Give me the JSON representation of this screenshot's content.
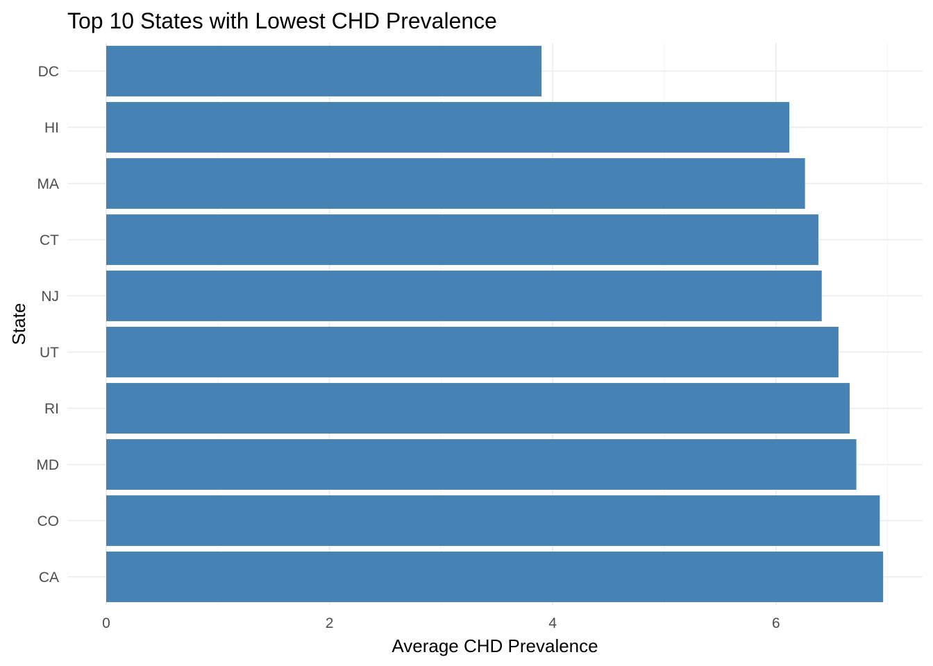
{
  "chart_data": {
    "type": "bar",
    "orientation": "horizontal",
    "title": "Top 10 States with Lowest CHD Prevalence",
    "xlabel": "Average CHD Prevalence",
    "ylabel": "State",
    "categories": [
      "DC",
      "HI",
      "MA",
      "CT",
      "NJ",
      "UT",
      "RI",
      "MD",
      "CO",
      "CA"
    ],
    "values": [
      3.9,
      6.12,
      6.26,
      6.38,
      6.41,
      6.56,
      6.66,
      6.72,
      6.93,
      6.96
    ],
    "xlim": [
      0,
      7.1
    ],
    "xticks": [
      0,
      2,
      4,
      6
    ],
    "grid": true,
    "bar_color": "#4682B4"
  }
}
